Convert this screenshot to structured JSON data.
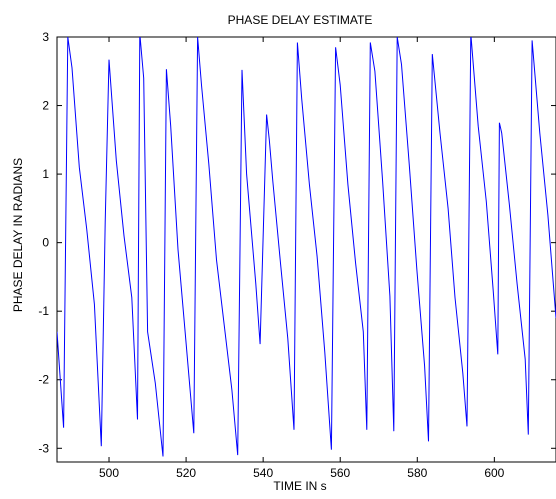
{
  "chart_data": {
    "type": "line",
    "title": "PHASE DELAY ESTIMATE",
    "xlabel": "TIME IN s",
    "ylabel": "PHASE DELAY IN RADIANS",
    "xlim": [
      486.5,
      616
    ],
    "ylim": [
      -3.2,
      3
    ],
    "xticks": [
      500,
      520,
      540,
      560,
      580,
      600
    ],
    "yticks": [
      -3,
      -2,
      -1,
      0,
      1,
      2,
      3
    ],
    "xtick_labels": [
      "500",
      "520",
      "540",
      "560",
      "580",
      "600"
    ],
    "ytick_labels": [
      "-3",
      "-2",
      "-1",
      "0",
      "1",
      "2",
      "3"
    ],
    "grid": false,
    "legend": "none",
    "line_color": "#0000ff",
    "series": [
      {
        "x": [
          486.5,
          488.2,
          489.3,
          490.4,
          492.3,
          494.2,
          496.2,
          498.0,
          499.0,
          500.0,
          501.9,
          503.9,
          505.9,
          507.4,
          508.0,
          509.0,
          510.0,
          512.0,
          514.0,
          514.9,
          516.0,
          517.9,
          519.9,
          522.0,
          523.0,
          524.0,
          525.9,
          527.9,
          529.9,
          531.9,
          533.4,
          534.5,
          535.7,
          538.1,
          539.2,
          540.9,
          541.6,
          542.5,
          544.5,
          546.4,
          548.0,
          548.9,
          550.0,
          552.0,
          554.0,
          556.0,
          557.7,
          558.8,
          560.0,
          562.0,
          564.0,
          566.0,
          566.9,
          567.8,
          569.0,
          571.0,
          572.9,
          573.9,
          574.8,
          575.9,
          577.9,
          579.9,
          581.9,
          582.9,
          583.9,
          585.9,
          588.0,
          589.8,
          591.8,
          592.9,
          593.9,
          595.8,
          597.9,
          599.7,
          600.9,
          601.3,
          601.9,
          603.9,
          605.9,
          608.0,
          608.8,
          609.8,
          611.8,
          613.9,
          616.0
        ],
        "y": [
          -1.3,
          -2.7,
          3.0,
          2.55,
          1.1,
          0.2,
          -0.9,
          -2.97,
          0.3,
          2.67,
          1.2,
          0.1,
          -0.8,
          -2.58,
          3.05,
          2.4,
          -1.3,
          -2.05,
          -3.12,
          2.53,
          1.7,
          -0.1,
          -1.4,
          -2.78,
          3.0,
          2.3,
          1.15,
          -0.25,
          -1.2,
          -2.15,
          -3.1,
          2.52,
          1.0,
          -0.6,
          -1.48,
          1.87,
          1.5,
          0.9,
          -0.3,
          -1.4,
          -2.73,
          2.92,
          2.1,
          0.85,
          -0.2,
          -1.6,
          -3.02,
          2.85,
          2.3,
          0.85,
          -0.3,
          -1.3,
          -2.73,
          2.92,
          2.5,
          0.9,
          -0.78,
          -2.75,
          3.0,
          2.6,
          1.15,
          -0.4,
          -1.8,
          -2.9,
          2.75,
          1.6,
          0.5,
          -0.8,
          -1.9,
          -2.68,
          3.05,
          1.7,
          0.6,
          -0.7,
          -1.63,
          1.75,
          1.6,
          0.55,
          -0.6,
          -1.7,
          -2.8,
          2.95,
          1.6,
          0.4,
          -1.1
        ]
      }
    ]
  }
}
